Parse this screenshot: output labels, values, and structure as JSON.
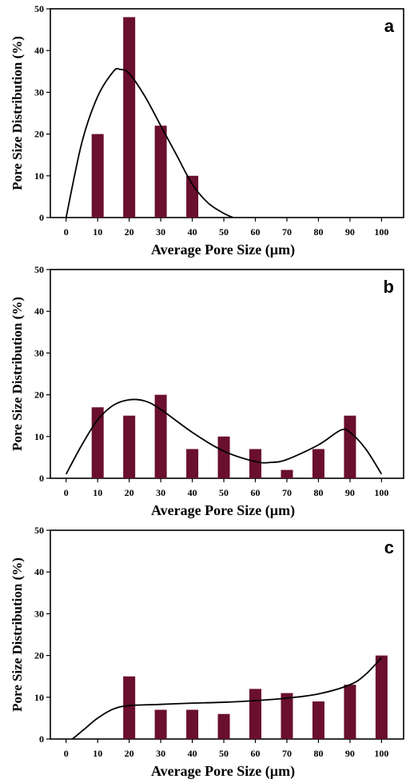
{
  "chart_data": [
    {
      "type": "bar",
      "panel_label": "a",
      "xlabel": "Average Pore Size (µm)",
      "ylabel": "Pore Size Distribution (%)",
      "xlim": [
        -5,
        107
      ],
      "ylim": [
        0,
        50
      ],
      "x_ticks": [
        0,
        10,
        20,
        30,
        40,
        50,
        60,
        70,
        80,
        90,
        100
      ],
      "y_ticks": [
        0,
        10,
        20,
        30,
        40,
        50
      ],
      "bars": [
        {
          "x": 10,
          "y": 20
        },
        {
          "x": 20,
          "y": 48
        },
        {
          "x": 30,
          "y": 22
        },
        {
          "x": 40,
          "y": 10
        }
      ],
      "fit_curve": [
        [
          0,
          0
        ],
        [
          5,
          18
        ],
        [
          10,
          29
        ],
        [
          15,
          35
        ],
        [
          17,
          35.5
        ],
        [
          20,
          34.5
        ],
        [
          25,
          29
        ],
        [
          30,
          22
        ],
        [
          35,
          15
        ],
        [
          40,
          8
        ],
        [
          45,
          3.5
        ],
        [
          50,
          1
        ],
        [
          53,
          0
        ]
      ],
      "bar_color": "#6a0f2e",
      "grid": false
    },
    {
      "type": "bar",
      "panel_label": "b",
      "xlabel": "Average Pore Size (µm)",
      "ylabel": "Pore Size Distribution (%)",
      "xlim": [
        -5,
        107
      ],
      "ylim": [
        0,
        50
      ],
      "x_ticks": [
        0,
        10,
        20,
        30,
        40,
        50,
        60,
        70,
        80,
        90,
        100
      ],
      "y_ticks": [
        0,
        10,
        20,
        30,
        40,
        50
      ],
      "bars": [
        {
          "x": 10,
          "y": 17
        },
        {
          "x": 20,
          "y": 15
        },
        {
          "x": 30,
          "y": 20
        },
        {
          "x": 40,
          "y": 7
        },
        {
          "x": 50,
          "y": 10
        },
        {
          "x": 60,
          "y": 7
        },
        {
          "x": 70,
          "y": 2
        },
        {
          "x": 80,
          "y": 7
        },
        {
          "x": 90,
          "y": 15
        }
      ],
      "fit_curve": [
        [
          0,
          1
        ],
        [
          5,
          8
        ],
        [
          10,
          14
        ],
        [
          15,
          17.5
        ],
        [
          20,
          18.8
        ],
        [
          25,
          18.5
        ],
        [
          30,
          16.5
        ],
        [
          40,
          11
        ],
        [
          50,
          6.5
        ],
        [
          60,
          4
        ],
        [
          65,
          3.8
        ],
        [
          70,
          4.5
        ],
        [
          80,
          8
        ],
        [
          87,
          11.5
        ],
        [
          90,
          11
        ],
        [
          95,
          7
        ],
        [
          100,
          1
        ]
      ],
      "bar_color": "#6a0f2e",
      "grid": false
    },
    {
      "type": "bar",
      "panel_label": "c",
      "xlabel": "Average Pore Size (µm)",
      "ylabel": "Pore Size Distribution (%)",
      "xlim": [
        -5,
        107
      ],
      "ylim": [
        0,
        50
      ],
      "x_ticks": [
        0,
        10,
        20,
        30,
        40,
        50,
        60,
        70,
        80,
        90,
        100
      ],
      "y_ticks": [
        0,
        10,
        20,
        30,
        40,
        50
      ],
      "bars": [
        {
          "x": 20,
          "y": 15
        },
        {
          "x": 30,
          "y": 7
        },
        {
          "x": 40,
          "y": 7
        },
        {
          "x": 50,
          "y": 6
        },
        {
          "x": 60,
          "y": 12
        },
        {
          "x": 70,
          "y": 11
        },
        {
          "x": 80,
          "y": 9
        },
        {
          "x": 90,
          "y": 13
        },
        {
          "x": 100,
          "y": 20
        }
      ],
      "fit_curve": [
        [
          2,
          0
        ],
        [
          6,
          2.5
        ],
        [
          10,
          5
        ],
        [
          15,
          7.2
        ],
        [
          20,
          8
        ],
        [
          30,
          8.3
        ],
        [
          40,
          8.6
        ],
        [
          50,
          8.8
        ],
        [
          60,
          9.2
        ],
        [
          70,
          9.8
        ],
        [
          80,
          10.8
        ],
        [
          90,
          13
        ],
        [
          95,
          15.5
        ],
        [
          100,
          19.5
        ]
      ],
      "bar_color": "#6a0f2e",
      "grid": false
    }
  ]
}
